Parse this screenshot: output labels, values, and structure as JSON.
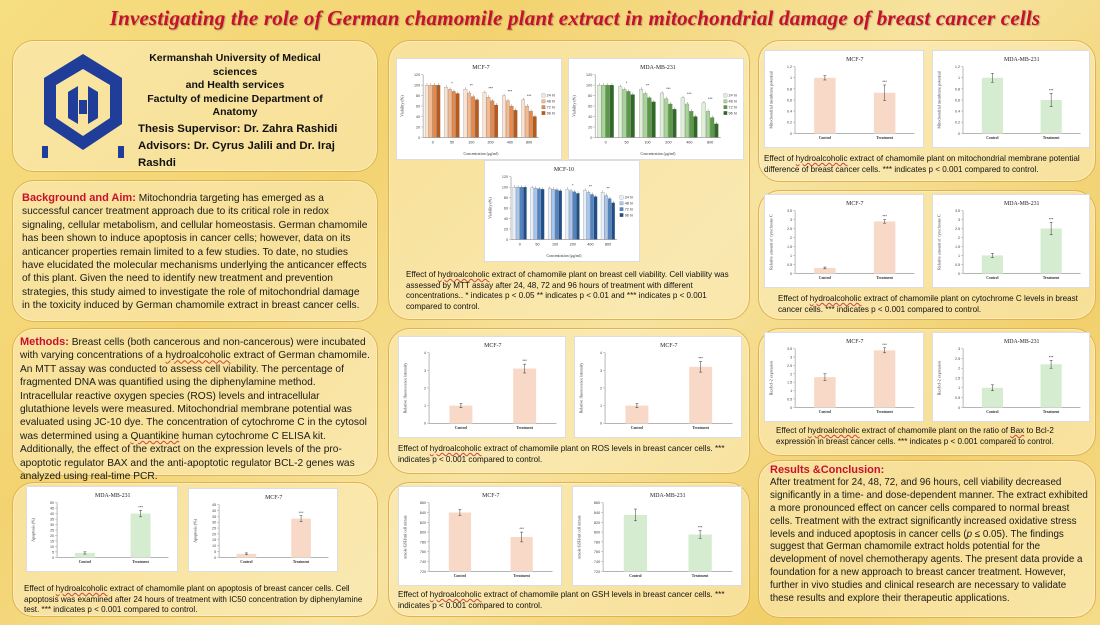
{
  "title": "Investigating the role of German chamomile plant extract in mitochondrial damage of breast cancer cells",
  "header": {
    "uni_lines": [
      "Kermanshah University of Medical sciences",
      "and Health services",
      "Factulty of medicine  Department of",
      "Anatomy"
    ],
    "supervisor": "Thesis Supervisor: Dr. Zahra Rashidi",
    "advisors": "Advisors: Dr. Cyrus Jalili and Dr. Iraj Rashdi"
  },
  "background": {
    "heading": "Background and Aim:",
    "text": " Mitochondria targeting has emerged as a successful cancer treatment approach due to its critical role in redox signaling, cellular metabolism, and cellular homeostasis. German chamomile has been shown to induce apoptosis in cancer cells; however, data on its anticancer properties remain limited to a few studies. To date, no studies have elucidated the molecular mechanisms underlying the anticancer effects of this plant. Given the need to identify new treatment and prevention strategies, this study aimed to investigate the role of mitochondrial damage in the toxicity induced by German chamomile extract in breast cancer cells."
  },
  "methods": {
    "heading": "Methods:",
    "t1": " Breast cells (both cancerous and non-cancerous) were incubated with varying concentrations of a ",
    "u1": "hydroalcoholic",
    "t2": " extract of German chamomile. An MTT assay was conducted to assess cell viability. The percentage of fragmented DNA was quantified using the diphenylamine method. Intracellular reactive oxygen species (ROS) levels and intracellular glutathione levels were measured. Mitochondrial membrane potential was evaluated using JC-10 dye. The concentration of cytochrome C in the cytosol was determined using a ",
    "u2": "Quantikine",
    "t3": " human cytochrome C ELISA kit. Additionally, the effect of the extract on the expression levels of the pro-apoptotic regulator BAX and the anti-apoptotic regulator BCL-2 genes was analyzed using real-time PCR."
  },
  "results": {
    "heading": "Results &Conclusion:",
    "t1": "After treatment for 24, 48, 72, and 96 hours, cell viability decreased significantly in a time- and dose-dependent manner. The extract exhibited a more pronounced effect on cancer cells compared to normal breast cells. Treatment with the extract significantly increased oxidative stress levels and induced apoptosis in cancer cells (",
    "p": "p",
    "t2": " ≤ 0.05). The findings suggest that German chamomile extract holds potential for the development of novel chemotherapy agents. The present data provide a foundation for a new approach to breast cancer treatment. However, further in vivo studies and clinical research are necessary to validate these results and explore their therapeutic applications."
  },
  "captions": {
    "viability": [
      "Effect of ",
      "hydroalcoholic",
      " extract of chamomile plant on breast cell viability. Cell viability was assessed by MTT assay after 24, 48, 72 and 96 hours of treatment with different concentrations.. * indicates p < 0.05 ** indicates p < 0.01 and *** indicates p < 0.001 compared to control."
    ],
    "ros": [
      "Effect of ",
      "hydroalcoholic",
      " extract of chamomile plant on ROS levels in breast cancer cells. *** indicates p < 0.001 compared to control."
    ],
    "gsh": [
      "Effect of ",
      "hydroalcoholic",
      " extract of chamomile plant on GSH levels in breast cancer cells. *** indicates p < 0.001 compared to control."
    ],
    "apoptosis": [
      "Effect of ",
      "hydroalcoholic",
      " extract of chamomile plant on apoptosis of breast cancer cells. Cell apoptosis was examined after 24 hours of treatment with IC50 concentration by diphenylamine test. *** indicates p < 0.001 compared to control."
    ],
    "mmp": [
      "Effect of ",
      "hydroalcoholic",
      " extract of chamomile plant on mitochondrial membrane potential difference of breast cancer cells. *** indicates p < 0.001 compared to control."
    ],
    "cytc": [
      "Effect of ",
      "hydroalcoholic",
      " extract of chamomile plant on cytochrome C levels in breast cancer cells. *** indicates p < 0.001 compared to control."
    ],
    "bax": [
      "Effect of ",
      "hydroalcoholic",
      " extract of chamomile plant on the ratio of ",
      "Bax",
      " to Bcl-2 expression in breast cancer cells. *** indicates p < 0.001 compared to control."
    ]
  },
  "colors": {
    "red": "#c8102e",
    "orange": "#e8894a",
    "peach": "#f8d9c7",
    "green": "#d5ecd0",
    "greenDark": "#5a9a46",
    "blue": "#2f6da8"
  },
  "chart_data": [
    {
      "id": "via_mcf7",
      "type": "bar",
      "title": "MCF-7",
      "ylabel": "Viability (%)",
      "xlabel": "Concentration (μg/ml)",
      "categories": [
        "0",
        "50",
        "100",
        "200",
        "400",
        "800"
      ],
      "ylim": [
        0,
        120
      ],
      "yticks": [
        0,
        20,
        40,
        60,
        80,
        100,
        120
      ],
      "legend": [
        "24 hr",
        "48 hr",
        "72 hr",
        "96 hr"
      ],
      "palette": "orange",
      "series": [
        {
          "name": "24 hr",
          "values": [
            100,
            96,
            92,
            86,
            80,
            72
          ]
        },
        {
          "name": "48 hr",
          "values": [
            100,
            92,
            85,
            77,
            70,
            60
          ]
        },
        {
          "name": "72 hr",
          "values": [
            100,
            88,
            78,
            70,
            60,
            50
          ]
        },
        {
          "name": "96 hr",
          "values": [
            100,
            84,
            72,
            62,
            52,
            40
          ]
        }
      ],
      "stars": [
        "",
        "*",
        "**",
        "***",
        "***",
        "***"
      ]
    },
    {
      "id": "via_mda",
      "type": "bar",
      "title": "MDA-MB-231",
      "ylabel": "Viability (%)",
      "xlabel": "Concentration (μg/ml)",
      "categories": [
        "0",
        "50",
        "100",
        "200",
        "400",
        "800"
      ],
      "ylim": [
        0,
        120
      ],
      "yticks": [
        0,
        20,
        40,
        60,
        80,
        100,
        120
      ],
      "legend": [
        "24 hr",
        "48 hr",
        "72 hr",
        "96 hr"
      ],
      "palette": "green",
      "series": [
        {
          "name": "24 hr",
          "values": [
            100,
            97,
            92,
            85,
            76,
            66
          ]
        },
        {
          "name": "48 hr",
          "values": [
            100,
            92,
            84,
            74,
            64,
            50
          ]
        },
        {
          "name": "72 hr",
          "values": [
            100,
            88,
            76,
            64,
            50,
            38
          ]
        },
        {
          "name": "96 hr",
          "values": [
            100,
            82,
            68,
            54,
            40,
            26
          ]
        }
      ],
      "stars": [
        "",
        "*",
        "**",
        "***",
        "***",
        "***"
      ]
    },
    {
      "id": "via_mcf10",
      "type": "bar",
      "title": "MCF-10",
      "ylabel": "Viability (%)",
      "xlabel": "Concentration (μg/ml)",
      "categories": [
        "0",
        "50",
        "100",
        "200",
        "400",
        "800"
      ],
      "ylim": [
        0,
        120
      ],
      "yticks": [
        0,
        20,
        40,
        60,
        80,
        100,
        120
      ],
      "legend": [
        "24 hr",
        "48 hr",
        "72 hr",
        "96 hr"
      ],
      "palette": "blue",
      "series": [
        {
          "name": "24 hr",
          "values": [
            100,
            99,
            98,
            96,
            94,
            90
          ]
        },
        {
          "name": "48 hr",
          "values": [
            100,
            98,
            96,
            93,
            90,
            84
          ]
        },
        {
          "name": "72 hr",
          "values": [
            100,
            97,
            95,
            91,
            86,
            78
          ]
        },
        {
          "name": "96 hr",
          "values": [
            100,
            96,
            93,
            88,
            82,
            70
          ]
        }
      ],
      "stars": [
        "",
        "",
        "",
        "*",
        "**",
        "**"
      ]
    },
    {
      "id": "ros_mcf7",
      "type": "bar",
      "title": "MCF-7",
      "ylabel": "Relative fluorescence intensity",
      "categories": [
        "Control",
        "Treatment"
      ],
      "ylim": [
        0,
        4
      ],
      "yticks": [
        0,
        1,
        2,
        3,
        4
      ],
      "values": [
        1,
        3.1
      ],
      "errors": [
        0.12,
        0.25
      ],
      "stars": [
        "",
        "***"
      ],
      "color": "#f8d9c7"
    },
    {
      "id": "ros_mda",
      "type": "bar",
      "title": "MCF-7",
      "ylabel": "Relative fluorescence intensity",
      "categories": [
        "Control",
        "Treatment"
      ],
      "ylim": [
        0,
        4
      ],
      "yticks": [
        0,
        1,
        2,
        3,
        4
      ],
      "values": [
        1,
        3.2
      ],
      "errors": [
        0.12,
        0.3
      ],
      "stars": [
        "",
        "***"
      ],
      "color": "#f8d9c7"
    },
    {
      "id": "gsh_mcf7",
      "type": "bar",
      "title": "MCF-7",
      "ylabel": "nmole GSH/ml cell nitrate",
      "categories": [
        "Control",
        "Treatment"
      ],
      "ylim": [
        720,
        860
      ],
      "yticks": [
        720,
        740,
        760,
        780,
        800,
        820,
        840,
        860
      ],
      "values": [
        840,
        790
      ],
      "errors": [
        6,
        10
      ],
      "stars": [
        "",
        "***"
      ],
      "color": "#f8d9c7"
    },
    {
      "id": "gsh_mda",
      "type": "bar",
      "title": "MDA-MB-231",
      "ylabel": "nmole GSH/ml cell nitrate",
      "categories": [
        "Control",
        "Treatment"
      ],
      "ylim": [
        720,
        860
      ],
      "yticks": [
        720,
        740,
        760,
        780,
        800,
        820,
        840,
        860
      ],
      "values": [
        835,
        795
      ],
      "errors": [
        12,
        8
      ],
      "stars": [
        "",
        "***"
      ],
      "color": "#d5ecd0"
    },
    {
      "id": "apo_mda",
      "type": "bar",
      "title": "MDA-MB-231",
      "ylabel": "Apoptosis (%)",
      "categories": [
        "Control",
        "Treatment"
      ],
      "ylim": [
        0,
        50
      ],
      "yticks": [
        0,
        5,
        10,
        15,
        20,
        25,
        30,
        35,
        40,
        45,
        50
      ],
      "values": [
        4,
        40
      ],
      "errors": [
        1,
        3
      ],
      "stars": [
        "",
        "***"
      ],
      "color": "#d5ecd0"
    },
    {
      "id": "apo_mcf7",
      "type": "bar",
      "title": "MCF-7",
      "ylabel": "Apoptosis (%)",
      "categories": [
        "Control",
        "Treatment"
      ],
      "ylim": [
        0,
        45
      ],
      "yticks": [
        0,
        5,
        10,
        15,
        20,
        25,
        30,
        35,
        40,
        45
      ],
      "values": [
        3,
        33
      ],
      "errors": [
        0.8,
        2.5
      ],
      "stars": [
        "",
        "***"
      ],
      "color": "#f8d9c7"
    },
    {
      "id": "mmp_mcf7",
      "type": "bar",
      "title": "MCF-7",
      "ylabel": "Mitochondrial membrane potential",
      "categories": [
        "Control",
        "Treatment"
      ],
      "ylim": [
        0,
        1.2
      ],
      "yticks": [
        0,
        0.2,
        0.4,
        0.6,
        0.8,
        1,
        1.2
      ],
      "values": [
        1,
        0.73
      ],
      "errors": [
        0.04,
        0.14
      ],
      "stars": [
        "",
        "***"
      ],
      "color": "#f8d9c7"
    },
    {
      "id": "mmp_mda",
      "type": "bar",
      "title": "MDA-MB-231",
      "ylabel": "Mitochondrial membrane potential",
      "categories": [
        "Control",
        "Treatment"
      ],
      "ylim": [
        0,
        1.2
      ],
      "yticks": [
        0,
        0.2,
        0.4,
        0.6,
        0.8,
        1,
        1.2
      ],
      "values": [
        1,
        0.6
      ],
      "errors": [
        0.08,
        0.12
      ],
      "stars": [
        "",
        "***"
      ],
      "color": "#d5ecd0"
    },
    {
      "id": "cyt_mcf7",
      "type": "bar",
      "title": "MCF-7",
      "ylabel": "Relative amount of cytochrome C",
      "categories": [
        "Control",
        "Treatment"
      ],
      "ylim": [
        0,
        3.5
      ],
      "yticks": [
        0,
        0.5,
        1,
        1.5,
        2,
        2.5,
        3,
        3.5
      ],
      "values": [
        0.3,
        2.9
      ],
      "errors": [
        0.05,
        0.1
      ],
      "stars": [
        "",
        "***"
      ],
      "color": "#f8d9c7"
    },
    {
      "id": "cyt_mda",
      "type": "bar",
      "title": "MDA-MB-231",
      "ylabel": "Relative amount of cytochrome C",
      "categories": [
        "Control",
        "Treatment"
      ],
      "ylim": [
        0,
        3.5
      ],
      "yticks": [
        0,
        0.5,
        1,
        1.5,
        2,
        2.5,
        3,
        3.5
      ],
      "values": [
        1,
        2.5
      ],
      "errors": [
        0.12,
        0.35
      ],
      "stars": [
        "",
        "***"
      ],
      "color": "#d5ecd0"
    },
    {
      "id": "bax_mcf7",
      "type": "bar",
      "title": "MCF-7",
      "ylabel": "Bax/bcl-2 expression",
      "categories": [
        "Control",
        "Treatment"
      ],
      "ylim": [
        0,
        3.5
      ],
      "yticks": [
        0,
        0.5,
        1,
        1.5,
        2,
        2.5,
        3,
        3.5
      ],
      "values": [
        1.8,
        3.4
      ],
      "errors": [
        0.2,
        0.15
      ],
      "stars": [
        "",
        "***"
      ],
      "color": "#f8d9c7"
    },
    {
      "id": "bax_mda",
      "type": "bar",
      "title": "MDA-MB-231",
      "ylabel": "Bax/bcl-2 expression",
      "categories": [
        "Control",
        "Treatment"
      ],
      "ylim": [
        0,
        3
      ],
      "yticks": [
        0,
        0.5,
        1,
        1.5,
        2,
        2.5,
        3
      ],
      "values": [
        1,
        2.2
      ],
      "errors": [
        0.15,
        0.2
      ],
      "stars": [
        "",
        "***"
      ],
      "color": "#d5ecd0"
    }
  ]
}
